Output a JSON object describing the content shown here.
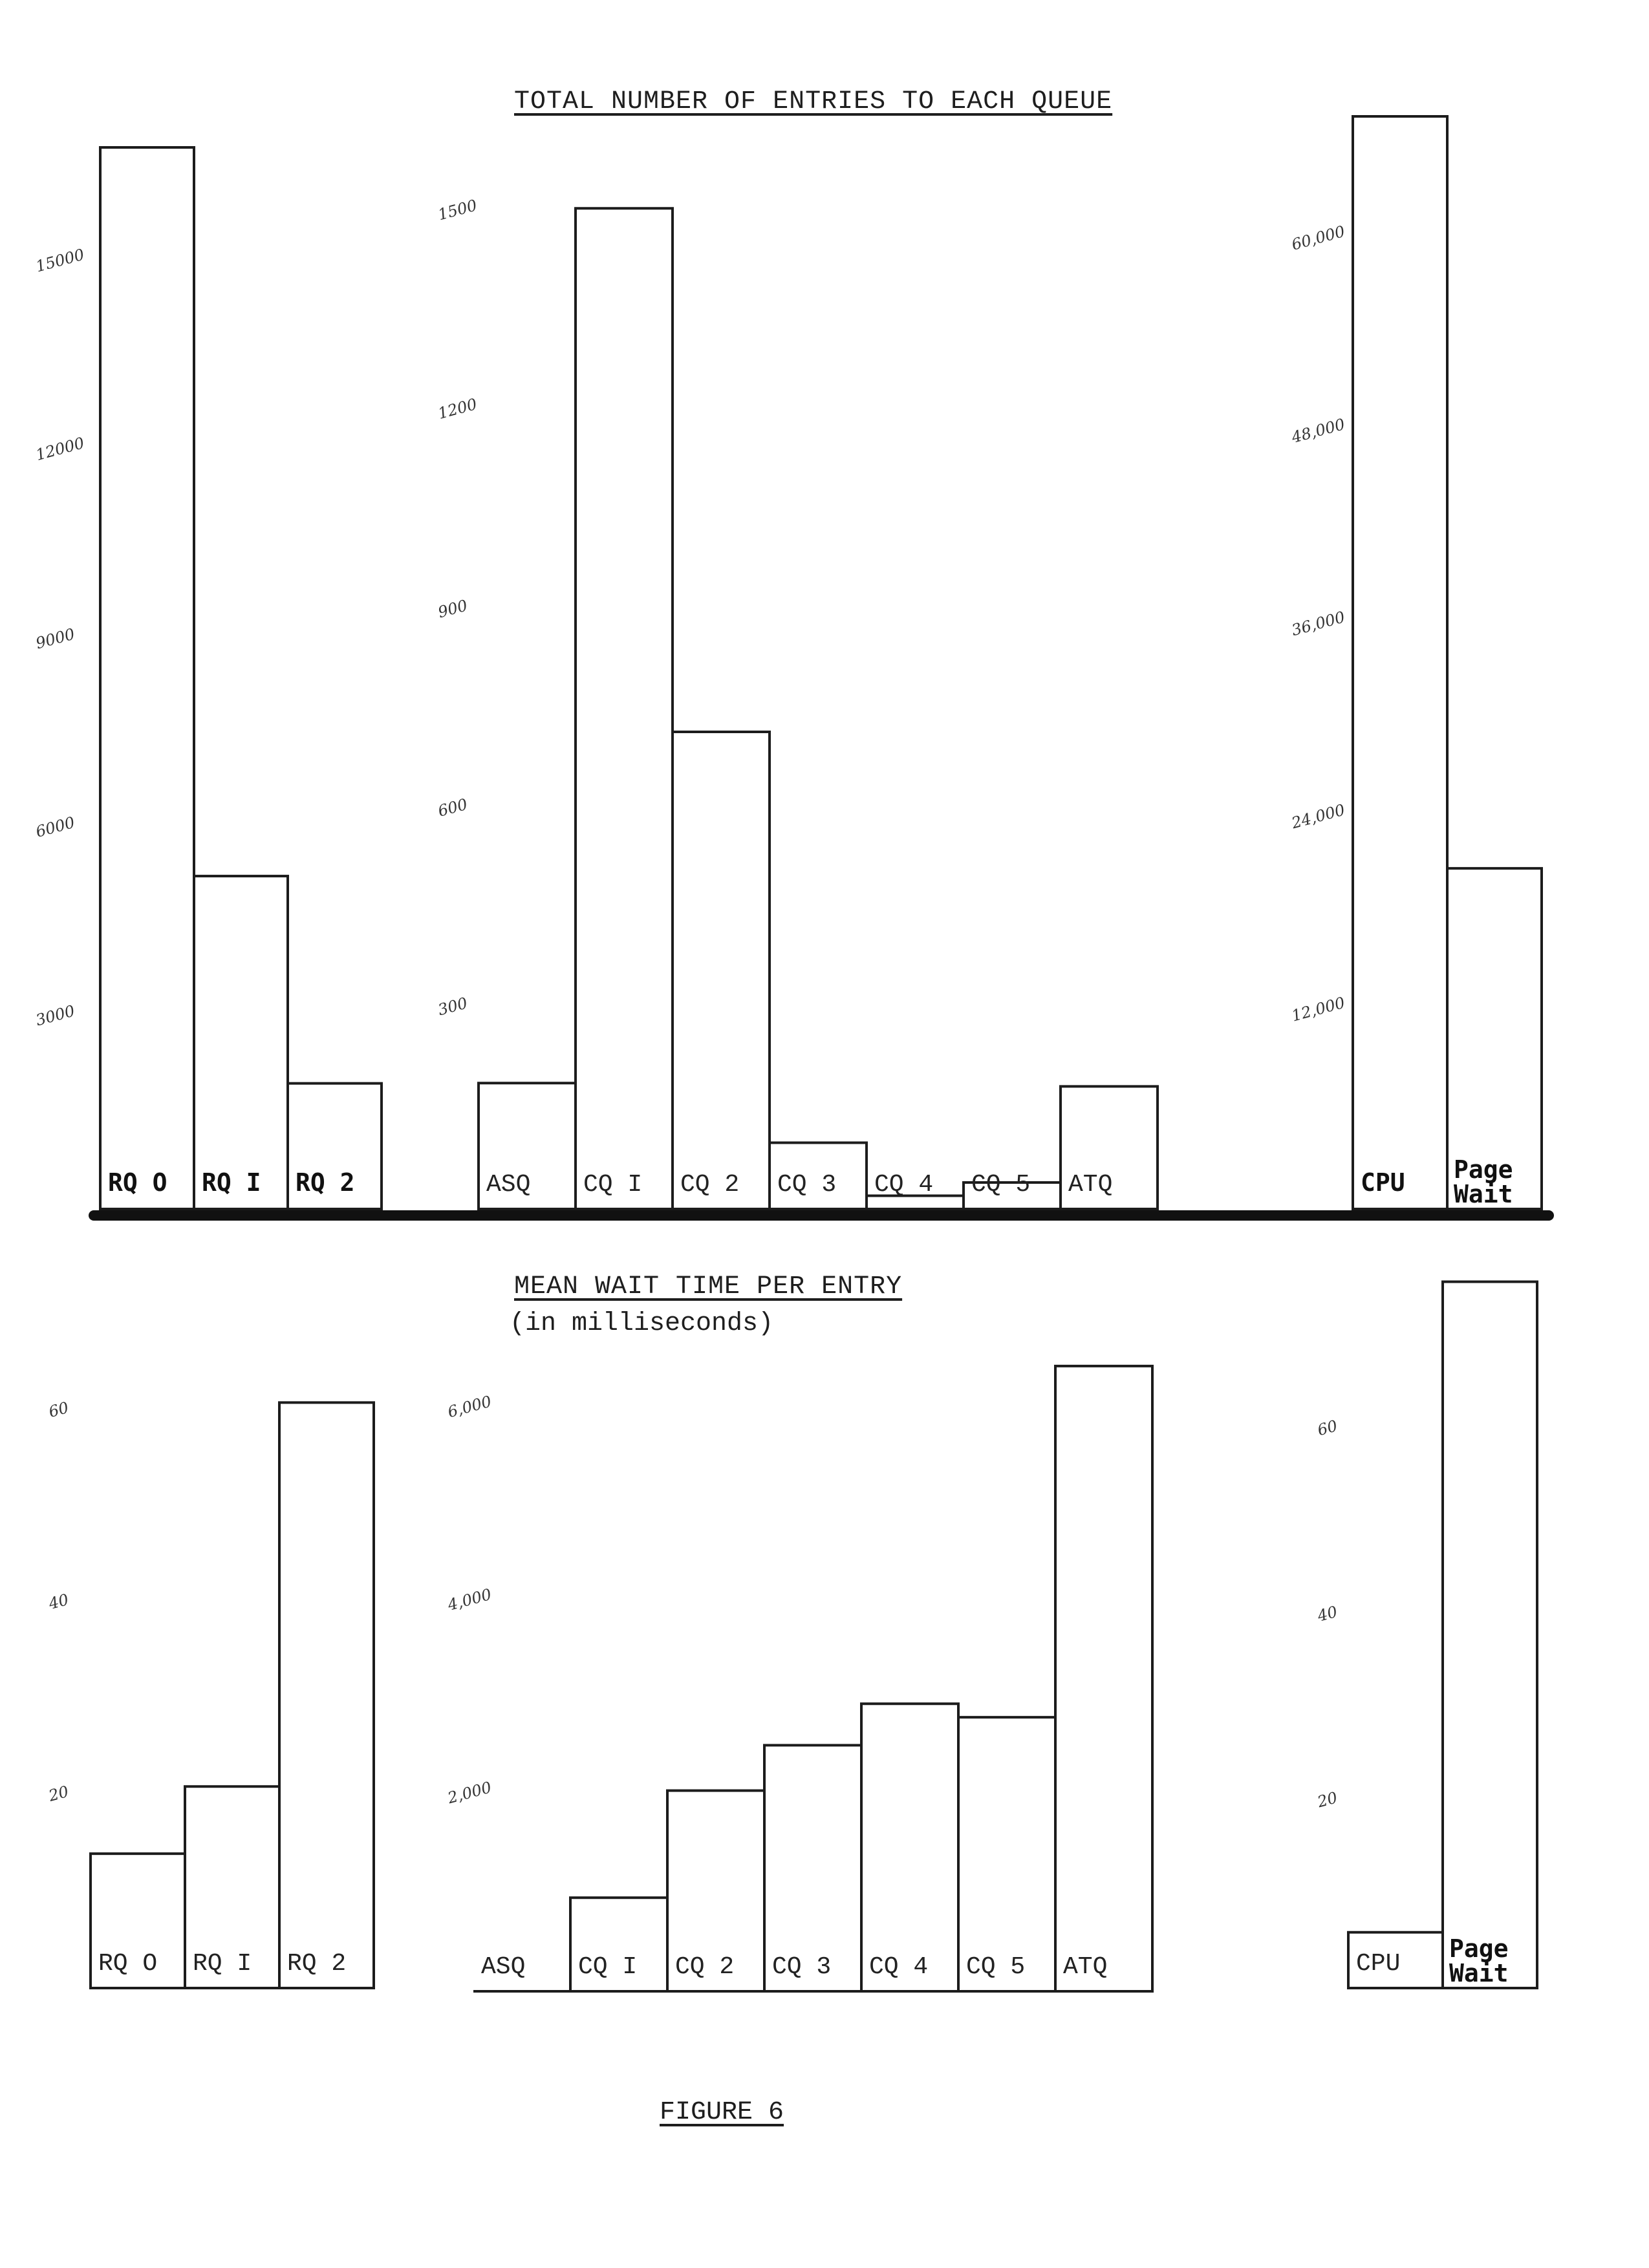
{
  "top_title": "TOTAL NUMBER OF ENTRIES TO EACH QUEUE",
  "bottom_title": "MEAN WAIT TIME PER ENTRY",
  "bottom_subtitle": "(in milliseconds)",
  "figure_label": "FIGURE 6",
  "chart_data": [
    {
      "id": "entries-rq",
      "type": "bar",
      "categories": [
        "RQ O",
        "RQ I",
        "RQ 2"
      ],
      "values": [
        16900,
        5300,
        2000
      ],
      "ylim": [
        0,
        16900
      ],
      "yticks": [
        3000,
        6000,
        9000,
        12000,
        15000
      ],
      "ytick_labels": [
        "3000",
        "6000",
        "9000",
        "12000",
        "15000"
      ]
    },
    {
      "id": "entries-cq",
      "type": "bar",
      "categories": [
        "ASQ",
        "CQ I",
        "CQ 2",
        "CQ 3",
        "CQ 4",
        "CQ 5",
        "ATQ"
      ],
      "values": [
        190,
        1510,
        720,
        100,
        20,
        40,
        185
      ],
      "ylim": [
        0,
        1600
      ],
      "yticks": [
        300,
        600,
        900,
        1200,
        1500
      ],
      "ytick_labels": [
        "300",
        "600",
        "900",
        "1200",
        "1500"
      ]
    },
    {
      "id": "entries-cpu",
      "type": "bar",
      "categories": [
        "CPU",
        "Page Wait"
      ],
      "values": [
        68000,
        21200
      ],
      "ylim": [
        0,
        68000
      ],
      "yticks": [
        12000,
        24000,
        36000,
        48000,
        60000
      ],
      "ytick_labels": [
        "12,000",
        "24,000",
        "36,000",
        "48,000",
        "60,000"
      ]
    },
    {
      "id": "wait-rq",
      "type": "bar",
      "categories": [
        "RQ O",
        "RQ I",
        "RQ 2"
      ],
      "values": [
        14,
        21,
        61
      ],
      "ylim": [
        0,
        65
      ],
      "yticks": [
        20,
        40,
        60
      ],
      "ytick_labels": [
        "20",
        "40",
        "60"
      ]
    },
    {
      "id": "wait-cq",
      "type": "bar",
      "categories": [
        "ASQ",
        "CQ I",
        "CQ 2",
        "CQ 3",
        "CQ 4",
        "CQ 5",
        "ATQ"
      ],
      "values": [
        0,
        970,
        2080,
        2550,
        2980,
        2840,
        6480
      ],
      "ylim": [
        0,
        6600
      ],
      "yticks": [
        2000,
        4000,
        6000
      ],
      "ytick_labels": [
        "2,000",
        "4,000",
        "6,000"
      ]
    },
    {
      "id": "wait-cpu",
      "type": "bar",
      "categories": [
        "CPU",
        "Page Wait"
      ],
      "values": [
        6,
        76
      ],
      "ylim": [
        0,
        80
      ],
      "yticks": [
        20,
        40,
        60
      ],
      "ytick_labels": [
        "20",
        "40",
        "60"
      ]
    }
  ]
}
